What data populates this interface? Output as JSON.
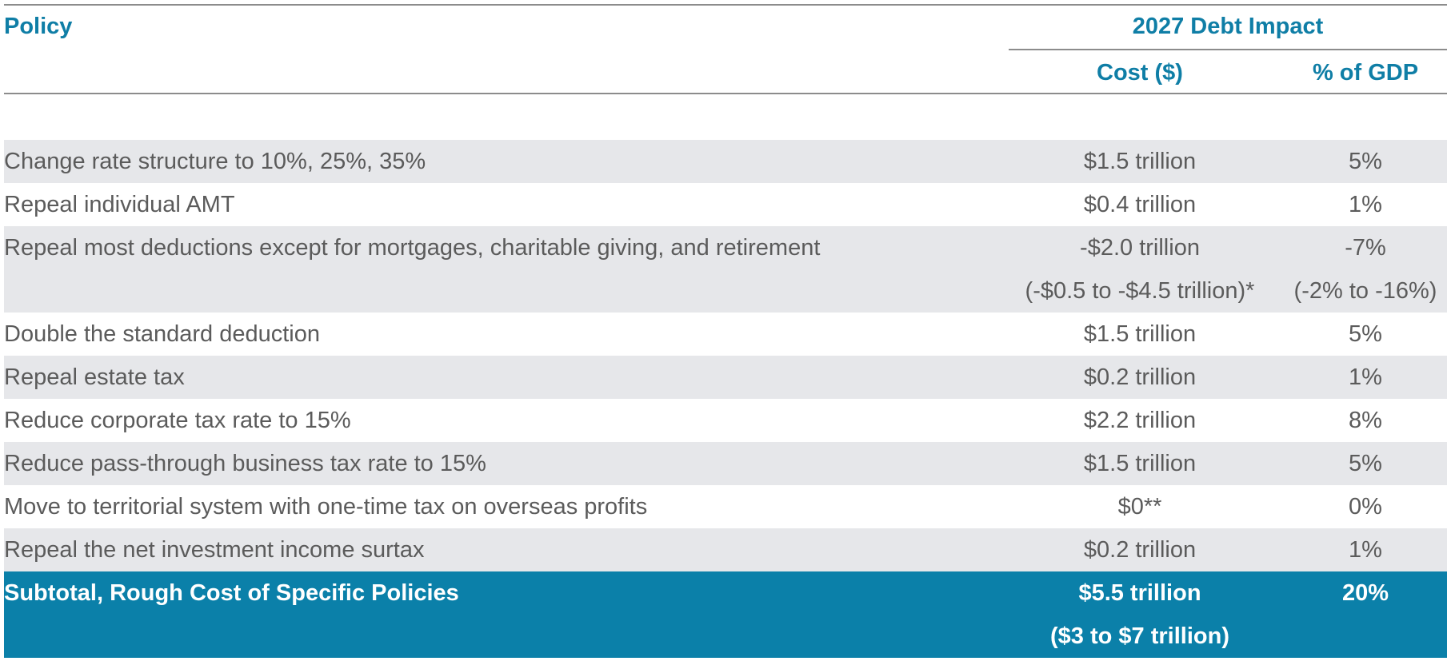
{
  "header": {
    "policy": "Policy",
    "group": "2027 Debt Impact",
    "cost": "Cost ($)",
    "gdp": "% of GDP"
  },
  "rows": [
    {
      "policy": "Change rate structure to 10%, 25%, 35%",
      "cost": "$1.5 trillion",
      "gdp": "5%"
    },
    {
      "policy": "Repeal individual AMT",
      "cost": "$0.4 trillion",
      "gdp": "1%"
    },
    {
      "policy": "Repeal most deductions except for mortgages, charitable giving, and retirement",
      "cost": "-$2.0 trillion",
      "gdp": "-7%"
    },
    {
      "policy": "",
      "cost": "(-$0.5 to -$4.5 trillion)*",
      "gdp": "(-2% to -16%)"
    },
    {
      "policy": "Double the standard deduction",
      "cost": "$1.5 trillion",
      "gdp": "5%"
    },
    {
      "policy": "Repeal estate tax",
      "cost": "$0.2 trillion",
      "gdp": "1%"
    },
    {
      "policy": "Reduce corporate tax rate to 15%",
      "cost": "$2.2 trillion",
      "gdp": "8%"
    },
    {
      "policy": "Reduce pass-through business tax rate to 15%",
      "cost": "$1.5 trillion",
      "gdp": "5%"
    },
    {
      "policy": "Move to territorial system with one-time tax on overseas profits",
      "cost": "$0**",
      "gdp": "0%"
    },
    {
      "policy": "Repeal the net investment income surtax",
      "cost": "$0.2 trillion",
      "gdp": "1%"
    }
  ],
  "subtotal": {
    "label": "Subtotal, Rough Cost of Specific Policies",
    "cost": "$5.5 trillion",
    "gdp": "20%",
    "cost_range": "($3 to $7 trillion)"
  },
  "colors": {
    "accent": "#0f7ea6",
    "subtotal_bg": "#0b80a9",
    "shaded_row": "#e6e7ea",
    "text": "#5b5b5b"
  }
}
